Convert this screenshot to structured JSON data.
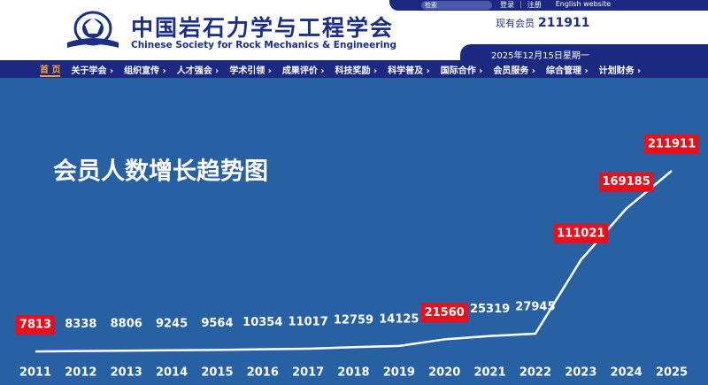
{
  "header": {
    "title": "中国岩石力学与工程学会",
    "subtitle": "Chinese Society for Rock Mechanics & Engineering",
    "search": "检索",
    "links": [
      "登录",
      "注册",
      "English website"
    ],
    "member_label": "现有会员",
    "member_count": 211911,
    "date": "2025年12月15日星期一"
  },
  "nav": [
    "首 页",
    "关于学会 ›",
    "组织宣传 ›",
    "人才强会 ›",
    "学术引领 ›",
    "成果评价 ›",
    "科技奖励 ›",
    "科学普及 ›",
    "国际合作 ›",
    "会员服务 ›",
    "综合管理 ›",
    "计划财务 ›"
  ],
  "chart_data": {
    "type": "line",
    "title": "会员人数增长趋势图",
    "categories": [
      "2011",
      "2012",
      "2013",
      "2014",
      "2015",
      "2016",
      "2017",
      "2018",
      "2019",
      "2020",
      "2021",
      "2022",
      "2023",
      "2024",
      "2025"
    ],
    "values": [
      7813,
      8338,
      8806,
      9245,
      9564,
      10354,
      11017,
      12759,
      14125,
      21560,
      25319,
      27945,
      111021,
      169185,
      211911
    ],
    "color": "#ffffff",
    "highlighted": [
      true,
      false,
      false,
      false,
      false,
      false,
      false,
      false,
      false,
      true,
      false,
      false,
      true,
      true,
      true
    ],
    "highlight_color": "#e8101c"
  }
}
